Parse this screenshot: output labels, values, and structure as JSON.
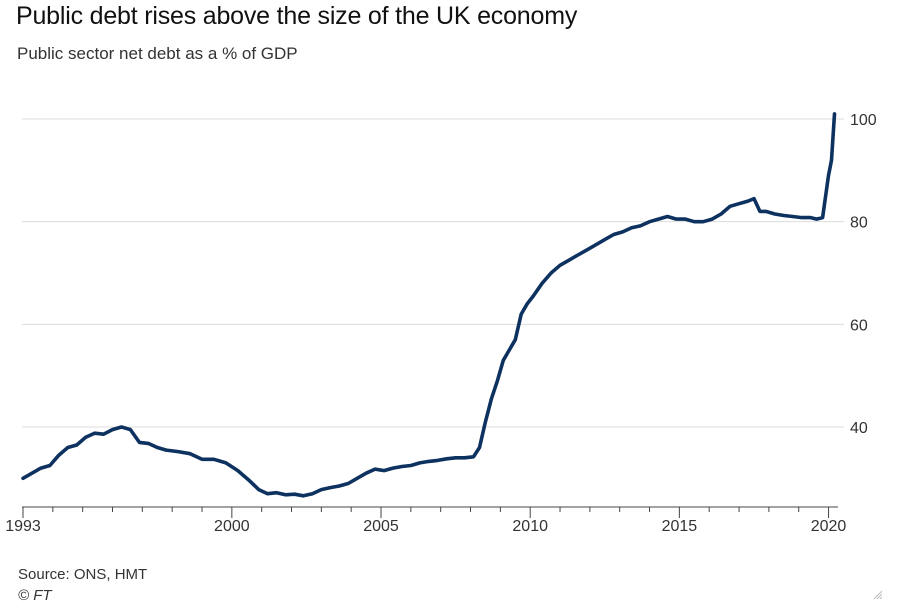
{
  "title": "Public debt rises above the size of the UK economy",
  "subtitle": "Public sector net debt as a % of GDP",
  "source": "Source: ONS, HMT",
  "credit": "© FT",
  "colors": {
    "line": "#0d3260",
    "grid": "#dcdcdc",
    "axis": "#444444",
    "text": "#333333"
  },
  "chart_data": {
    "type": "line",
    "title": "Public debt rises above the size of the UK economy",
    "subtitle": "Public sector net debt as a % of GDP",
    "xlabel": "",
    "ylabel": "",
    "y_axis_side": "right",
    "xlim": [
      1993,
      2020.25
    ],
    "ylim": [
      26,
      102
    ],
    "x_ticks": [
      1993,
      2000,
      2005,
      2010,
      2015,
      2020
    ],
    "x_tick_labels": [
      "1993",
      "2000",
      "2005",
      "2010",
      "2015",
      "2020"
    ],
    "y_ticks": [
      40,
      60,
      80,
      100
    ],
    "y_tick_labels": [
      "40",
      "60",
      "80",
      "100"
    ],
    "grid": "horizontal",
    "legend": "none",
    "series": [
      {
        "x": [
          1993.0,
          1993.3,
          1993.6,
          1993.9,
          1994.2,
          1994.5,
          1994.8,
          1995.1,
          1995.4,
          1995.7,
          1996.0,
          1996.3,
          1996.6,
          1996.9,
          1997.2,
          1997.5,
          1997.8,
          1998.2,
          1998.6,
          1999.0,
          1999.4,
          1999.8,
          2000.2,
          2000.6,
          2000.9,
          2001.2,
          2001.5,
          2001.8,
          2002.1,
          2002.4,
          2002.7,
          2003.0,
          2003.3,
          2003.6,
          2003.9,
          2004.2,
          2004.5,
          2004.8,
          2005.1,
          2005.4,
          2005.7,
          2006.0,
          2006.3,
          2006.6,
          2006.9,
          2007.2,
          2007.5,
          2007.8,
          2008.1,
          2008.3,
          2008.5,
          2008.7,
          2008.9,
          2009.1,
          2009.3,
          2009.5,
          2009.7,
          2009.9,
          2010.1,
          2010.4,
          2010.7,
          2011.0,
          2011.3,
          2011.6,
          2011.9,
          2012.2,
          2012.5,
          2012.8,
          2013.1,
          2013.4,
          2013.7,
          2014.0,
          2014.3,
          2014.6,
          2014.9,
          2015.2,
          2015.5,
          2015.8,
          2016.1,
          2016.4,
          2016.7,
          2017.0,
          2017.3,
          2017.5,
          2017.7,
          2017.9,
          2018.2,
          2018.5,
          2018.8,
          2019.1,
          2019.4,
          2019.6,
          2019.8,
          2020.0,
          2020.1,
          2020.2
        ],
        "values": [
          30.0,
          31.0,
          32.0,
          32.5,
          34.5,
          36.0,
          36.5,
          38.0,
          38.8,
          38.6,
          39.5,
          40.0,
          39.5,
          37.0,
          36.8,
          36.0,
          35.5,
          35.2,
          34.8,
          33.7,
          33.7,
          33.0,
          31.5,
          29.5,
          27.8,
          27.0,
          27.2,
          26.8,
          26.9,
          26.6,
          27.0,
          27.8,
          28.2,
          28.5,
          29.0,
          30.0,
          31.0,
          31.8,
          31.5,
          32.0,
          32.3,
          32.5,
          33.0,
          33.3,
          33.5,
          33.8,
          34.0,
          34.0,
          34.2,
          36.0,
          41.0,
          45.5,
          49.0,
          53.0,
          55.0,
          57.0,
          62.0,
          64.0,
          65.5,
          68.0,
          70.0,
          71.5,
          72.5,
          73.5,
          74.5,
          75.5,
          76.5,
          77.5,
          78.0,
          78.8,
          79.2,
          80.0,
          80.5,
          81.0,
          80.5,
          80.5,
          80.0,
          80.0,
          80.5,
          81.5,
          83.0,
          83.5,
          84.0,
          84.5,
          82.0,
          82.0,
          81.5,
          81.2,
          81.0,
          80.8,
          80.8,
          80.5,
          80.8,
          89.0,
          92.0,
          101.0
        ]
      }
    ]
  }
}
